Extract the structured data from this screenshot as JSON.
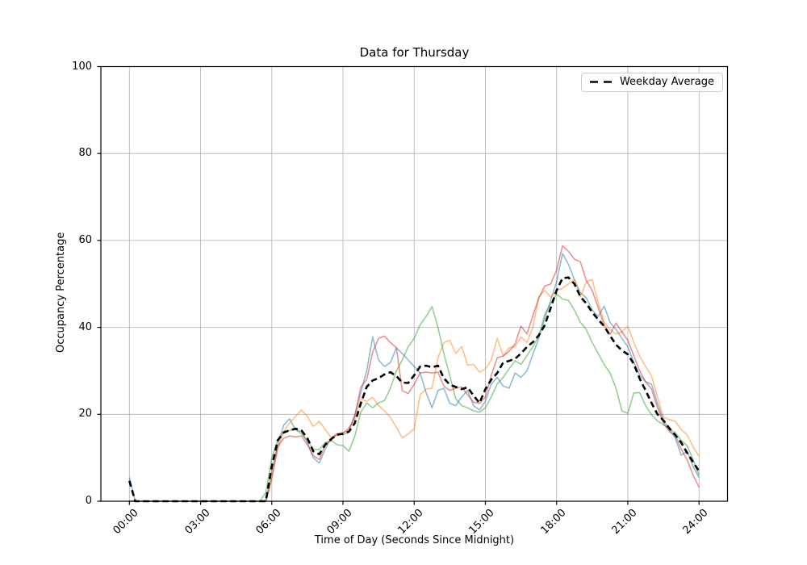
{
  "figure": {
    "title": "Data for Thursday"
  },
  "colors": {
    "background": "#ffffff",
    "grid": "#b0b0b0",
    "spine": "#000000"
  },
  "chart_data": {
    "type": "line",
    "title": "Data for Thursday",
    "xlabel": "Time of Day (Seconds Since Midnight)",
    "ylabel": "Occupancy Percentage",
    "grid": true,
    "legend_position": "upper right",
    "ylim": [
      0,
      100
    ],
    "xlim_seconds": [
      -4320,
      90720
    ],
    "y_ticks": [
      0,
      20,
      40,
      60,
      80,
      100
    ],
    "x_tick_seconds": [
      0,
      10800,
      21600,
      32400,
      43200,
      54000,
      64800,
      75600,
      86400
    ],
    "x_tick_labels": [
      "00:00",
      "03:00",
      "06:00",
      "09:00",
      "12:00",
      "15:00",
      "18:00",
      "21:00",
      "24:00"
    ],
    "x_start_hours": 0,
    "x_step_hours": 0.25,
    "series": [
      {
        "id": "thursday-1",
        "label": "",
        "color": "rgba(31,119,180,0.5)",
        "width": 1.6,
        "dash": "",
        "in_legend": false,
        "values": [
          5.5,
          0,
          0,
          0,
          0,
          0,
          0,
          0,
          0,
          0,
          0,
          0,
          0,
          0,
          0,
          0,
          0,
          0,
          0,
          0,
          0,
          0,
          0,
          0,
          7,
          13,
          17.5,
          19,
          16.5,
          16,
          13.5,
          10,
          8.8,
          12,
          14.5,
          15.5,
          15.3,
          16,
          20,
          25,
          30,
          37.8,
          32.5,
          31,
          31.9,
          35.3,
          34,
          32.5,
          31,
          29.5,
          25,
          21.5,
          25.5,
          26,
          22.5,
          22,
          24,
          25.5,
          22,
          21,
          23,
          27,
          28.5,
          26.5,
          26,
          29.5,
          28.5,
          30,
          33.8,
          37.5,
          42,
          46.2,
          50.5,
          57,
          54.5,
          51,
          48,
          46.8,
          44,
          42.5,
          44.9,
          41.2,
          39.5,
          37.5,
          35.5,
          32,
          29,
          27.5,
          26.9,
          22.5,
          18.6,
          16.5,
          14.5,
          10.6,
          11.5,
          8,
          5.4
        ]
      },
      {
        "id": "thursday-2",
        "label": "",
        "color": "rgba(255,127,14,0.5)",
        "width": 1.6,
        "dash": "",
        "in_legend": false,
        "values": [
          0,
          0,
          0,
          0,
          0,
          0,
          0,
          0,
          0,
          0,
          0,
          0,
          0,
          0,
          0,
          0,
          0,
          0,
          0,
          0,
          0,
          0,
          0,
          0,
          6,
          12,
          16,
          18,
          19.5,
          21,
          19.5,
          17.2,
          18.4,
          16.5,
          14.7,
          15.2,
          15.5,
          17,
          19,
          23.5,
          23,
          23.9,
          22,
          20.8,
          19.3,
          17,
          14.6,
          15.5,
          16.7,
          24.5,
          25.8,
          26,
          33,
          36.5,
          37,
          34,
          35.6,
          31.3,
          31.5,
          29.7,
          30.4,
          32.5,
          37.5,
          33.4,
          35.3,
          35.6,
          37.8,
          36.5,
          40,
          47,
          48.5,
          47,
          48.5,
          49,
          50,
          51,
          47,
          50.5,
          51,
          45.8,
          41.2,
          39.5,
          38.5,
          39,
          40.3,
          36.5,
          33.4,
          31,
          28.8,
          24,
          19.3,
          18.8,
          18.4,
          16.5,
          15.2,
          12.5,
          10.3
        ]
      },
      {
        "id": "thursday-3",
        "label": "",
        "color": "rgba(44,160,44,0.5)",
        "width": 1.6,
        "dash": "",
        "in_legend": false,
        "values": [
          0,
          0,
          0,
          0,
          0,
          0,
          0,
          0,
          0,
          0,
          0,
          0,
          0,
          0,
          0,
          0,
          0,
          0,
          0,
          0,
          0,
          0,
          0,
          2,
          10,
          14,
          16,
          16.3,
          16.5,
          15.5,
          14,
          12,
          11.9,
          13.5,
          14,
          13,
          12.8,
          11.5,
          15,
          20.5,
          22.6,
          21.5,
          22.6,
          23.2,
          26,
          30,
          32.5,
          35.6,
          37.5,
          40.6,
          42.5,
          44.8,
          40,
          34,
          28.8,
          23.6,
          22,
          21.5,
          20.8,
          20.5,
          21.5,
          24,
          27,
          28.5,
          30.5,
          32.3,
          31.5,
          33.5,
          35.6,
          38,
          43,
          45.5,
          47.7,
          46.5,
          46.2,
          44,
          41.2,
          39.5,
          36.5,
          34,
          31.5,
          29.5,
          26,
          20.8,
          20.2,
          24.9,
          25,
          22,
          19.9,
          18.5,
          17.6,
          16.5,
          15.8,
          14,
          12.8,
          9.5,
          6
        ]
      },
      {
        "id": "thursday-4",
        "label": "",
        "color": "rgba(214,39,40,0.5)",
        "width": 1.6,
        "dash": "",
        "in_legend": false,
        "values": [
          0,
          0,
          0,
          0,
          0,
          0,
          0,
          0,
          0,
          0,
          0,
          0,
          0,
          0,
          0,
          0,
          0,
          0,
          0,
          0,
          0,
          0,
          0,
          0,
          5,
          12.5,
          14.5,
          15,
          14.8,
          15,
          13,
          10.5,
          9.6,
          13,
          14,
          15.5,
          15.8,
          16.5,
          19.5,
          26.3,
          28,
          34.3,
          37.5,
          38,
          36.5,
          35.3,
          25.4,
          24.8,
          26.9,
          29.5,
          29.7,
          29.5,
          29.7,
          26.5,
          25.5,
          26,
          26.3,
          24.5,
          22.8,
          22.5,
          24,
          29,
          33,
          33.4,
          34.5,
          36.2,
          40.3,
          38.5,
          42.7,
          46.8,
          49.5,
          50,
          53.2,
          58.8,
          57.5,
          55.7,
          55.1,
          50.8,
          48.5,
          44.6,
          40.5,
          38.4,
          41,
          39,
          37,
          33.5,
          30,
          27.5,
          25.8,
          21.5,
          18,
          16,
          15.2,
          12,
          9.5,
          6,
          3.2
        ]
      },
      {
        "id": "weekday-average",
        "label": "Weekday Average",
        "color": "#000000",
        "width": 2.6,
        "dash": "7.5 4.5",
        "in_legend": true,
        "values": [
          4.7,
          0,
          0,
          0,
          0,
          0,
          0,
          0,
          0,
          0,
          0,
          0,
          0,
          0,
          0,
          0,
          0,
          0,
          0,
          0,
          0,
          0,
          0,
          0,
          8,
          14,
          15.8,
          16.3,
          16.7,
          16.3,
          14.5,
          11.5,
          10.8,
          13,
          14.3,
          15.3,
          15.5,
          16,
          18,
          22.5,
          26.3,
          27.8,
          28.3,
          29.2,
          29.7,
          28.8,
          27.3,
          27.2,
          29,
          31,
          31.2,
          30.8,
          31.2,
          28.3,
          26.8,
          26.3,
          25.8,
          26.2,
          24.3,
          22.6,
          25.8,
          28,
          29.5,
          31.9,
          32.3,
          32.8,
          34,
          35.5,
          36.6,
          38.2,
          40.5,
          44.5,
          48.5,
          51.3,
          51.5,
          50,
          47.1,
          45.5,
          43.5,
          41.8,
          40.3,
          38.1,
          36,
          34.7,
          33.8,
          31.6,
          28.2,
          25.5,
          22.6,
          20,
          18.6,
          16.8,
          15.2,
          13.5,
          11.1,
          9,
          6.9
        ]
      }
    ]
  }
}
